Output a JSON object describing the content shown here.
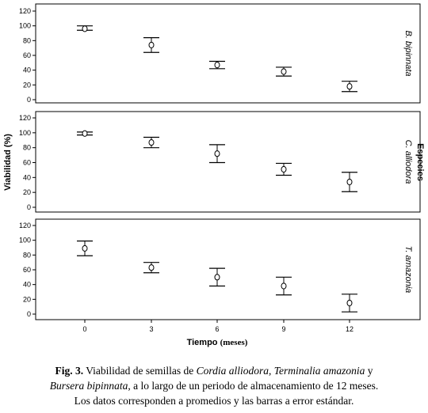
{
  "chart_data": {
    "type": "scatter",
    "x": [
      0,
      3,
      6,
      9,
      12
    ],
    "xlabel": "Tiempo",
    "xlabel_unit": "(meses)",
    "ylabel": "Viabilidad (%)",
    "facet_label": "Especies",
    "ylim": [
      0,
      120
    ],
    "yticks": [
      0,
      20,
      40,
      60,
      80,
      100,
      120
    ],
    "grid": false,
    "panels": [
      {
        "species": "B. bipinnata",
        "means": [
          96,
          74,
          47,
          38,
          18
        ],
        "lower": [
          94,
          64,
          42,
          32,
          11
        ],
        "upper": [
          100,
          84,
          52,
          44,
          25
        ]
      },
      {
        "species": "C. alliodora",
        "means": [
          99,
          87,
          72,
          51,
          34
        ],
        "lower": [
          97,
          80,
          60,
          43,
          21
        ],
        "upper": [
          101,
          94,
          84,
          59,
          47
        ]
      },
      {
        "species": "T. amazonia",
        "means": [
          89,
          63,
          50,
          38,
          15
        ],
        "lower": [
          79,
          56,
          38,
          26,
          3
        ],
        "upper": [
          99,
          70,
          62,
          50,
          27
        ]
      }
    ]
  },
  "caption": {
    "label": "Fig. 3.",
    "text1": "Viabilidad de semillas de",
    "sp1": "Cordia alliodora",
    "sep1": ",",
    "sp2": "Terminalia amazonia",
    "text2": "y",
    "sp3": "Bursera bipinnata",
    "text3": ", a lo largo de un periodo  de almacenamiento de 12 meses.",
    "line3": "Los datos corresponden a promedios y las barras a error estándar."
  }
}
